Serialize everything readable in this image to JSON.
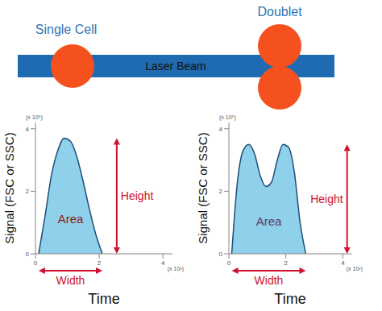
{
  "diagram": {
    "single_cell_label": "Single Cell",
    "doublet_label": "Doublet",
    "beam_label": "Laser Beam"
  },
  "chart_data": [
    {
      "type": "area",
      "x": [
        0.1,
        0.3,
        0.5,
        0.7,
        0.9,
        1.1,
        1.3,
        1.5,
        1.7,
        1.9,
        2.1
      ],
      "values": [
        0,
        1.2,
        2.5,
        3.3,
        3.7,
        3.6,
        3.1,
        2.3,
        1.4,
        0.6,
        0
      ],
      "xlim": [
        0,
        4.3
      ],
      "ylim": [
        0,
        4.2
      ],
      "xticks": [
        0,
        2,
        4
      ],
      "yticks": [
        0,
        2,
        4
      ],
      "x_scale_label": "(x 10³)",
      "y_scale_label": "(x 10⁵)",
      "xlabel": "Time",
      "ylabel": "Signal (FSC or SSC)",
      "color": "#8fd0ea",
      "annotations": {
        "area": "Area",
        "height": "Height",
        "width": "Width"
      }
    },
    {
      "type": "area",
      "x": [
        0.1,
        0.3,
        0.5,
        0.7,
        0.9,
        1.1,
        1.3,
        1.5,
        1.7,
        1.9,
        2.1,
        2.3,
        2.5,
        2.7
      ],
      "values": [
        0,
        2.3,
        3.3,
        3.5,
        3.2,
        2.5,
        2.15,
        2.3,
        3.0,
        3.5,
        3.4,
        2.6,
        1.0,
        0
      ],
      "xlim": [
        0,
        4.3
      ],
      "ylim": [
        0,
        4.2
      ],
      "xticks": [
        0,
        2,
        4
      ],
      "yticks": [
        0,
        2,
        4
      ],
      "x_scale_label": "(x 10³)",
      "y_scale_label": "(x 10⁵)",
      "xlabel": "Time",
      "ylabel": "Signal (FSC or SSC)",
      "color": "#8fd0ea",
      "annotations": {
        "area": "Area",
        "height": "Height",
        "width": "Width"
      }
    }
  ]
}
